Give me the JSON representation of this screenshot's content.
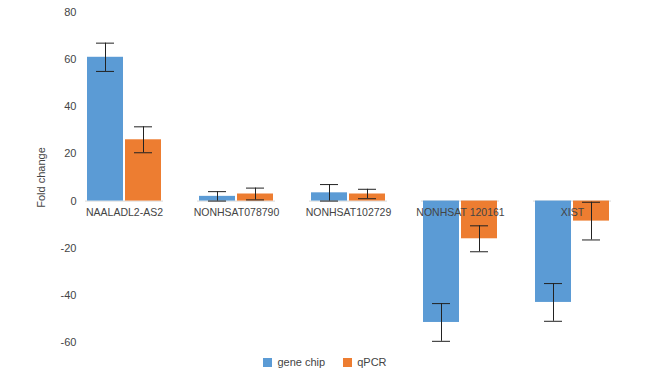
{
  "chart_data": {
    "type": "bar",
    "categories": [
      "NAALADL2-AS2",
      "NONHSAT078790",
      "NONHSAT102729",
      "NONHSAT 120161",
      "XIST"
    ],
    "series": [
      {
        "name": "gene chip",
        "color": "#5b9bd5",
        "values": [
          61,
          2,
          3.5,
          -51.5,
          -43
        ],
        "errors": [
          6,
          2,
          3.5,
          8,
          8
        ]
      },
      {
        "name": "qPCR",
        "color": "#ed7d31",
        "values": [
          26,
          3,
          3,
          -16,
          -8.5
        ],
        "errors": [
          5.5,
          2.5,
          2,
          5.5,
          8
        ]
      }
    ],
    "ylabel": "Fold change",
    "ylim": [
      -60,
      80
    ],
    "yticks": [
      -60,
      -40,
      -20,
      0,
      20,
      40,
      60,
      80
    ],
    "grid": false,
    "legend": "bottom"
  }
}
